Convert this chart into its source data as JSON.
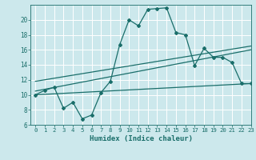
{
  "xlabel": "Humidex (Indice chaleur)",
  "background_color": "#cce8ec",
  "grid_color": "#ffffff",
  "line_color": "#1a6e6a",
  "xlim": [
    -0.5,
    23
  ],
  "ylim": [
    6,
    22
  ],
  "xticks": [
    0,
    1,
    2,
    3,
    4,
    5,
    6,
    7,
    8,
    9,
    10,
    11,
    12,
    13,
    14,
    15,
    16,
    17,
    18,
    19,
    20,
    21,
    22,
    23
  ],
  "yticks": [
    6,
    8,
    10,
    12,
    14,
    16,
    18,
    20
  ],
  "curve1_x": [
    0,
    1,
    2,
    3,
    4,
    5,
    6,
    7,
    8,
    9,
    10,
    11,
    12,
    13,
    14,
    15,
    16,
    17,
    18,
    19,
    20,
    21,
    22,
    23
  ],
  "curve1_y": [
    10.0,
    10.6,
    11.0,
    8.2,
    9.0,
    6.8,
    7.3,
    10.3,
    11.8,
    16.7,
    20.0,
    19.2,
    21.4,
    21.5,
    21.6,
    18.3,
    18.0,
    13.9,
    16.2,
    15.0,
    15.0,
    14.3,
    11.5,
    11.5
  ],
  "line1_x": [
    0,
    23
  ],
  "line1_y": [
    10.5,
    16.0
  ],
  "line2_x": [
    0,
    23
  ],
  "line2_y": [
    11.8,
    16.5
  ],
  "line3_x": [
    0,
    23
  ],
  "line3_y": [
    10.0,
    11.5
  ],
  "figwidth": 3.2,
  "figheight": 2.0,
  "dpi": 100
}
